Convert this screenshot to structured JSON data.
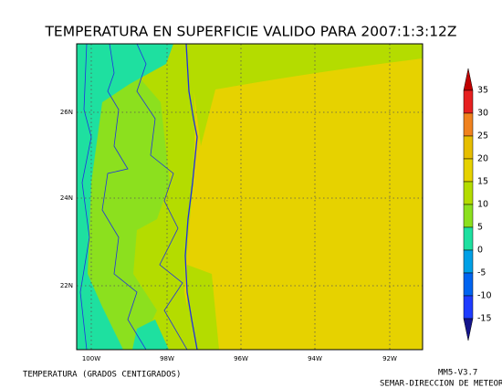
{
  "title": "TEMPERATURA EN SUPERFICIE VALIDO PARA 2007:1:3:12Z",
  "map": {
    "lat_labels": [
      "26N",
      "24N",
      "22N"
    ],
    "lon_labels": [
      "100W",
      "98W",
      "96W",
      "94W",
      "92W"
    ]
  },
  "colorbar": {
    "levels": [
      35,
      30,
      25,
      20,
      15,
      10,
      5,
      0,
      -5,
      -10,
      -15
    ],
    "colors": [
      "#c00000",
      "#e62020",
      "#f0821e",
      "#e6be00",
      "#e6d200",
      "#b4dc00",
      "#8ce01e",
      "#1ee0a0",
      "#00a0e6",
      "#0064f0",
      "#1e3cff",
      "#1414c8",
      "#14148c"
    ]
  },
  "footer": {
    "variable": "TEMPERATURA (GRADOS CENTIGRADOS)",
    "model": "MM5-V3.7",
    "agency": "SEMAR-DIRECCION DE METEOROLOGIA"
  }
}
